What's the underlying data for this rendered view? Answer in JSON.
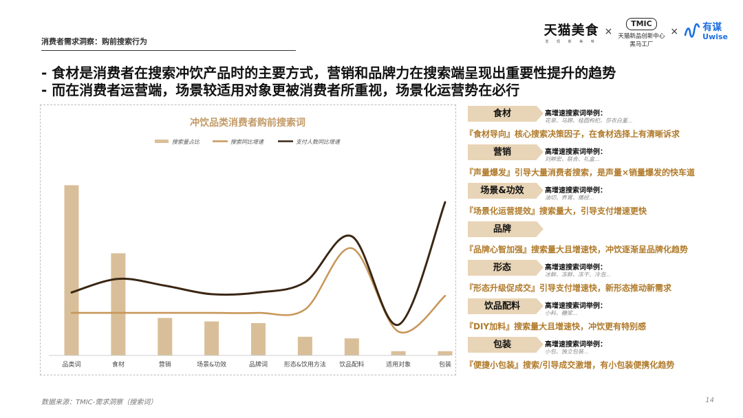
{
  "header": {
    "label": "消费者需求洞察：购前搜索行为"
  },
  "logos": {
    "tmall_name": "天猫美食",
    "tmall_sub": "发 现 新 美 味",
    "separator": "×",
    "tmic_badge": "TMIC",
    "tmic_line1": "天猫新品创新中心",
    "tmic_line2": "黑马工厂",
    "uwise_cn": "有谋",
    "uwise_en": "Uwise",
    "uwise_color": "#1d6fe0"
  },
  "headlines": [
    "- 食材是消费者在搜索冲饮产品时的主要方式，营销和品牌力在搜索端呈现出重要性提升的趋势",
    "- 而在消费者运营端，场景较适用对象更被消费者所重视，场景化运营势在必行"
  ],
  "chart_data": {
    "type": "bar",
    "title": "冲饮品类消费者购前搜索词",
    "categories": [
      "品类词",
      "食材",
      "营销",
      "场景&功效",
      "品牌词",
      "形态&饮用方法",
      "饮品配料",
      "适用对象",
      "包装"
    ],
    "series": [
      {
        "name": "搜索量占比",
        "kind": "bar",
        "color": "#d9bf99",
        "values": [
          100,
          60,
          22,
          20,
          19,
          11,
          10,
          2.5,
          2.5
        ]
      },
      {
        "name": "搜索同比增速",
        "kind": "line",
        "color": "#c8965a",
        "values": [
          25,
          25,
          25,
          25,
          25,
          27,
          63,
          14,
          35
        ]
      },
      {
        "name": "支付人数同比增速",
        "kind": "line",
        "color": "#3a2614",
        "values": [
          37,
          45,
          41,
          36,
          37,
          43,
          70,
          18,
          90
        ]
      }
    ],
    "ylim": [
      0,
      105
    ],
    "xlabel": "",
    "ylabel": "",
    "grid": false,
    "legend_position": "top"
  },
  "panel": {
    "rows": [
      {
        "tag": "食材",
        "kw_title": "高增速搜索词举例：",
        "kw_list": "花草、马蹄、桂圆枸杞、莎衣白堇...",
        "insight": "『食材导向』核心搜索决策因子，在食材选择上有清晰诉求"
      },
      {
        "tag": "营销",
        "kw_title": "高增速搜索词举例：",
        "kw_list": "刘畊宏、联合、礼盒...",
        "insight": "『声量爆发』引导大量消费者搜索，是声量×销量爆发的快车道"
      },
      {
        "tag": "场景&功效",
        "kw_title": "高增速搜索词举例：",
        "kw_list": "油切、养胃、痛经...",
        "insight": "『场景化运营提效』搜索量大，引导支付增速更快"
      },
      {
        "tag": "品牌",
        "kw_title": "",
        "kw_list": "",
        "insight": "『品牌心智加强』搜索量大且增速快，冲饮逐渐呈品牌化趋势"
      },
      {
        "tag": "形态",
        "kw_title": "高增速搜索词举例：",
        "kw_list": "冰鲜、冻鲜、冻干、冷泡...",
        "insight": "『形态升级促成交』引导支付增速快，新形态推动新需求"
      },
      {
        "tag": "饮品配料",
        "kw_title": "高增速搜索词举例：",
        "kw_list": "小料、糖浆...",
        "insight": "『DIY加料』搜索量大且增速快，冲饮更有特别感"
      },
      {
        "tag": "包装",
        "kw_title": "高增速搜索词举例：",
        "kw_list": "小包、独立包装...",
        "insight": "『便捷小包装』搜索/引导成交激增，有小包装便携化趋势"
      }
    ]
  },
  "footer": {
    "source": "数据来源：TMIC-需求洞察（搜索词）",
    "page": "14"
  }
}
